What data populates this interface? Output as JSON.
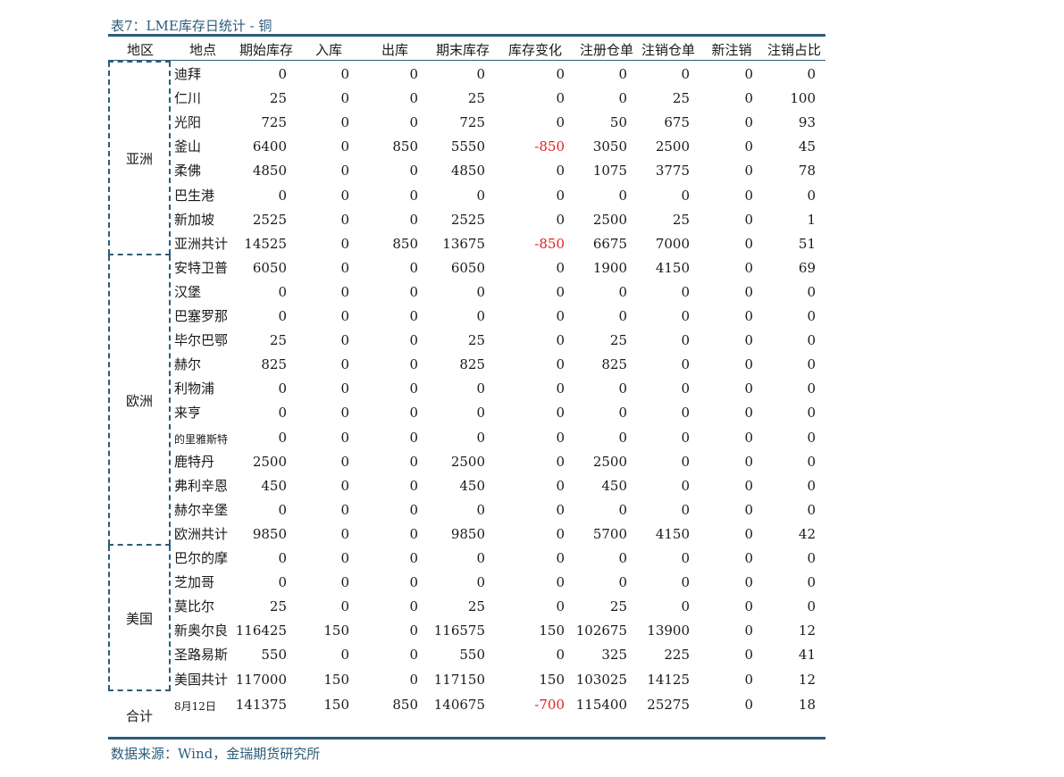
{
  "title": "表7：LME库存日统计 - 铜",
  "source": "数据来源：Wind，金瑞期货研究所",
  "headers": [
    "地区",
    "地点",
    "期始库存",
    "入库",
    "出库",
    "期末库存",
    "库存变化",
    "注册仓单",
    "注销仓单",
    "新注销",
    "注销占比"
  ],
  "regions": [
    {
      "name": "亚洲"
    },
    {
      "name": "欧洲"
    },
    {
      "name": "美国"
    },
    {
      "name": "合计"
    }
  ],
  "rows": [
    {
      "loc": "迪拜",
      "v": [
        "0",
        "0",
        "0",
        "0",
        "0",
        "0",
        "0",
        "0",
        "0"
      ]
    },
    {
      "loc": "仁川",
      "v": [
        "25",
        "0",
        "0",
        "25",
        "0",
        "0",
        "25",
        "0",
        "100"
      ]
    },
    {
      "loc": "光阳",
      "v": [
        "725",
        "0",
        "0",
        "725",
        "0",
        "50",
        "675",
        "0",
        "93"
      ]
    },
    {
      "loc": "釜山",
      "v": [
        "6400",
        "0",
        "850",
        "5550",
        "-850",
        "3050",
        "2500",
        "0",
        "45"
      ]
    },
    {
      "loc": "柔佛",
      "v": [
        "4850",
        "0",
        "0",
        "4850",
        "0",
        "1075",
        "3775",
        "0",
        "78"
      ]
    },
    {
      "loc": "巴生港",
      "v": [
        "0",
        "0",
        "0",
        "0",
        "0",
        "0",
        "0",
        "0",
        "0"
      ]
    },
    {
      "loc": "新加坡",
      "v": [
        "2525",
        "0",
        "0",
        "2525",
        "0",
        "2500",
        "25",
        "0",
        "1"
      ]
    },
    {
      "loc": "亚洲共计",
      "v": [
        "14525",
        "0",
        "850",
        "13675",
        "-850",
        "6675",
        "7000",
        "0",
        "51"
      ]
    },
    {
      "loc": "安特卫普",
      "v": [
        "6050",
        "0",
        "0",
        "6050",
        "0",
        "1900",
        "4150",
        "0",
        "69"
      ]
    },
    {
      "loc": "汉堡",
      "v": [
        "0",
        "0",
        "0",
        "0",
        "0",
        "0",
        "0",
        "0",
        "0"
      ]
    },
    {
      "loc": "巴塞罗那",
      "v": [
        "0",
        "0",
        "0",
        "0",
        "0",
        "0",
        "0",
        "0",
        "0"
      ]
    },
    {
      "loc": "毕尔巴鄂",
      "v": [
        "25",
        "0",
        "0",
        "25",
        "0",
        "25",
        "0",
        "0",
        "0"
      ]
    },
    {
      "loc": "赫尔",
      "v": [
        "825",
        "0",
        "0",
        "825",
        "0",
        "825",
        "0",
        "0",
        "0"
      ]
    },
    {
      "loc": "利物浦",
      "v": [
        "0",
        "0",
        "0",
        "0",
        "0",
        "0",
        "0",
        "0",
        "0"
      ]
    },
    {
      "loc": "来亨",
      "v": [
        "0",
        "0",
        "0",
        "0",
        "0",
        "0",
        "0",
        "0",
        "0"
      ]
    },
    {
      "loc": "的里雅斯特",
      "v": [
        "0",
        "0",
        "0",
        "0",
        "0",
        "0",
        "0",
        "0",
        "0"
      ]
    },
    {
      "loc": "鹿特丹",
      "v": [
        "2500",
        "0",
        "0",
        "2500",
        "0",
        "2500",
        "0",
        "0",
        "0"
      ]
    },
    {
      "loc": "弗利辛恩",
      "v": [
        "450",
        "0",
        "0",
        "450",
        "0",
        "450",
        "0",
        "0",
        "0"
      ]
    },
    {
      "loc": "赫尔辛堡",
      "v": [
        "0",
        "0",
        "0",
        "0",
        "0",
        "0",
        "0",
        "0",
        "0"
      ]
    },
    {
      "loc": "欧洲共计",
      "v": [
        "9850",
        "0",
        "0",
        "9850",
        "0",
        "5700",
        "4150",
        "0",
        "42"
      ]
    },
    {
      "loc": "巴尔的摩",
      "v": [
        "0",
        "0",
        "0",
        "0",
        "0",
        "0",
        "0",
        "0",
        "0"
      ]
    },
    {
      "loc": "芝加哥",
      "v": [
        "0",
        "0",
        "0",
        "0",
        "0",
        "0",
        "0",
        "0",
        "0"
      ]
    },
    {
      "loc": "莫比尔",
      "v": [
        "25",
        "0",
        "0",
        "25",
        "0",
        "25",
        "0",
        "0",
        "0"
      ]
    },
    {
      "loc": "新奥尔良",
      "v": [
        "116425",
        "150",
        "0",
        "116575",
        "150",
        "102675",
        "13900",
        "0",
        "12"
      ]
    },
    {
      "loc": "圣路易斯",
      "v": [
        "550",
        "0",
        "0",
        "550",
        "0",
        "325",
        "225",
        "0",
        "41"
      ]
    },
    {
      "loc": "美国共计",
      "v": [
        "117000",
        "150",
        "0",
        "117150",
        "150",
        "103025",
        "14125",
        "0",
        "12"
      ]
    },
    {
      "loc": "8月12日",
      "v": [
        "141375",
        "150",
        "850",
        "140675",
        "-700",
        "115400",
        "25275",
        "0",
        "18"
      ]
    }
  ]
}
